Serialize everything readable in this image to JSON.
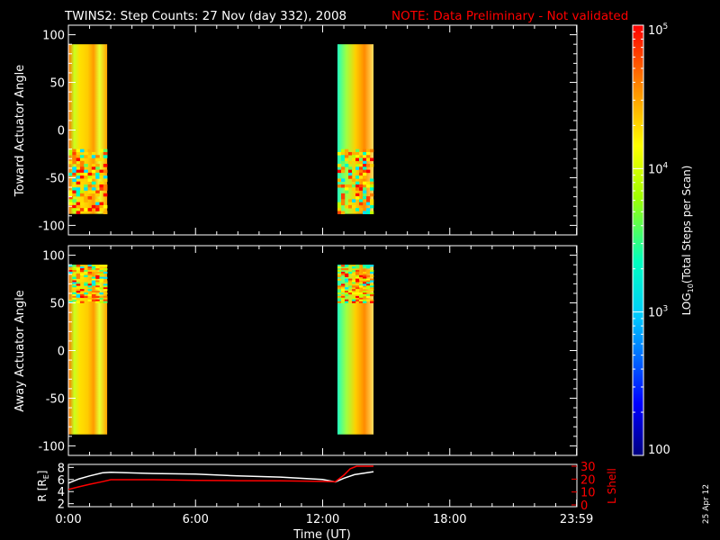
{
  "title": "TWINS2: Step Counts: 27 Nov (day 332), 2008",
  "note": "NOTE: Data Preliminary - Not validated",
  "date_stamp": "25 Apr 12",
  "colors": {
    "background": "#000000",
    "foreground": "#ffffff",
    "note": "#ff0000",
    "r_line": "#ffffff",
    "l_line": "#ff0000"
  },
  "chart_data": [
    {
      "type": "heatmap",
      "ylabel": "Toward Actuator Angle",
      "ylim": [
        -110,
        110
      ],
      "yticks": [
        100,
        50,
        0,
        -50,
        -100
      ],
      "ytick_labels": [
        "100",
        "50",
        "0",
        "-50",
        "-100"
      ],
      "xlim": [
        0,
        24
      ],
      "x_range_shown": [
        0,
        23.983
      ],
      "grid": false,
      "angle_range": [
        -88,
        90
      ],
      "data_blocks": [
        {
          "x_start": 0.0,
          "x_end": 1.83
        },
        {
          "x_start": 12.7,
          "x_end": 14.4
        }
      ]
    },
    {
      "type": "heatmap",
      "ylabel": "Away Actuator Angle",
      "ylim": [
        -110,
        110
      ],
      "yticks": [
        100,
        50,
        0,
        -50,
        -100
      ],
      "ytick_labels": [
        "100",
        "50",
        "0",
        "-50",
        "-100"
      ],
      "xlim": [
        0,
        24
      ],
      "grid": false,
      "angle_range": [
        -88,
        90
      ],
      "data_blocks": [
        {
          "x_start": 0.0,
          "x_end": 1.83
        },
        {
          "x_start": 12.7,
          "x_end": 14.4
        }
      ]
    },
    {
      "type": "line",
      "xlabel": "Time (UT)",
      "xlim": [
        0,
        24
      ],
      "xticks": [
        0,
        6,
        12,
        18,
        23.983
      ],
      "xtick_labels": [
        "0:00",
        "6:00",
        "12:00",
        "18:00",
        "23:59"
      ],
      "left_axis": {
        "label": "R [R",
        "label_sub": "E",
        "label_tail": "]",
        "ylim": [
          1.5,
          8.5
        ],
        "yticks": [
          2,
          4,
          6,
          8
        ],
        "ytick_labels": [
          "2",
          "4",
          "6",
          "8"
        ]
      },
      "right_axis": {
        "label": "L Shell",
        "ylim": [
          0,
          30
        ],
        "yticks": [
          0,
          10,
          20,
          30
        ],
        "ytick_labels": [
          "0",
          "10",
          "20",
          "30"
        ]
      },
      "series": [
        {
          "axis": "left",
          "color": "#ffffff",
          "x": [
            0.0,
            0.5,
            1.0,
            1.6,
            2.0,
            4.0,
            6.0,
            8.0,
            10.0,
            12.0,
            12.6,
            13.0,
            13.5,
            14.4
          ],
          "y": [
            5.4,
            6.1,
            6.6,
            7.1,
            7.2,
            7.0,
            6.9,
            6.6,
            6.4,
            6.0,
            5.6,
            6.2,
            6.8,
            7.3
          ]
        },
        {
          "axis": "right",
          "color": "#ff0000",
          "x": [
            0.0,
            0.5,
            1.0,
            1.6,
            2.0,
            4.0,
            6.0,
            8.0,
            10.0,
            12.0,
            12.6,
            13.0,
            13.3,
            13.6,
            14.4
          ],
          "y": [
            12.0,
            14.0,
            16.0,
            18.0,
            19.5,
            19.5,
            19.0,
            18.8,
            18.6,
            18.2,
            18.0,
            23.0,
            28.0,
            30.0,
            30.0
          ]
        }
      ]
    },
    {
      "type": "colorbar",
      "label_prefix": "LOG",
      "label_sub": "10",
      "label_tail": "(Total Steps per Scan)",
      "scale": "log",
      "range": [
        100,
        100000
      ],
      "ticks": [
        100,
        1000,
        10000,
        100000
      ],
      "tick_labels": [
        {
          "base": "100",
          "exp": ""
        },
        {
          "base": "10",
          "exp": "3"
        },
        {
          "base": "10",
          "exp": "4"
        },
        {
          "base": "10",
          "exp": "5"
        }
      ]
    }
  ]
}
